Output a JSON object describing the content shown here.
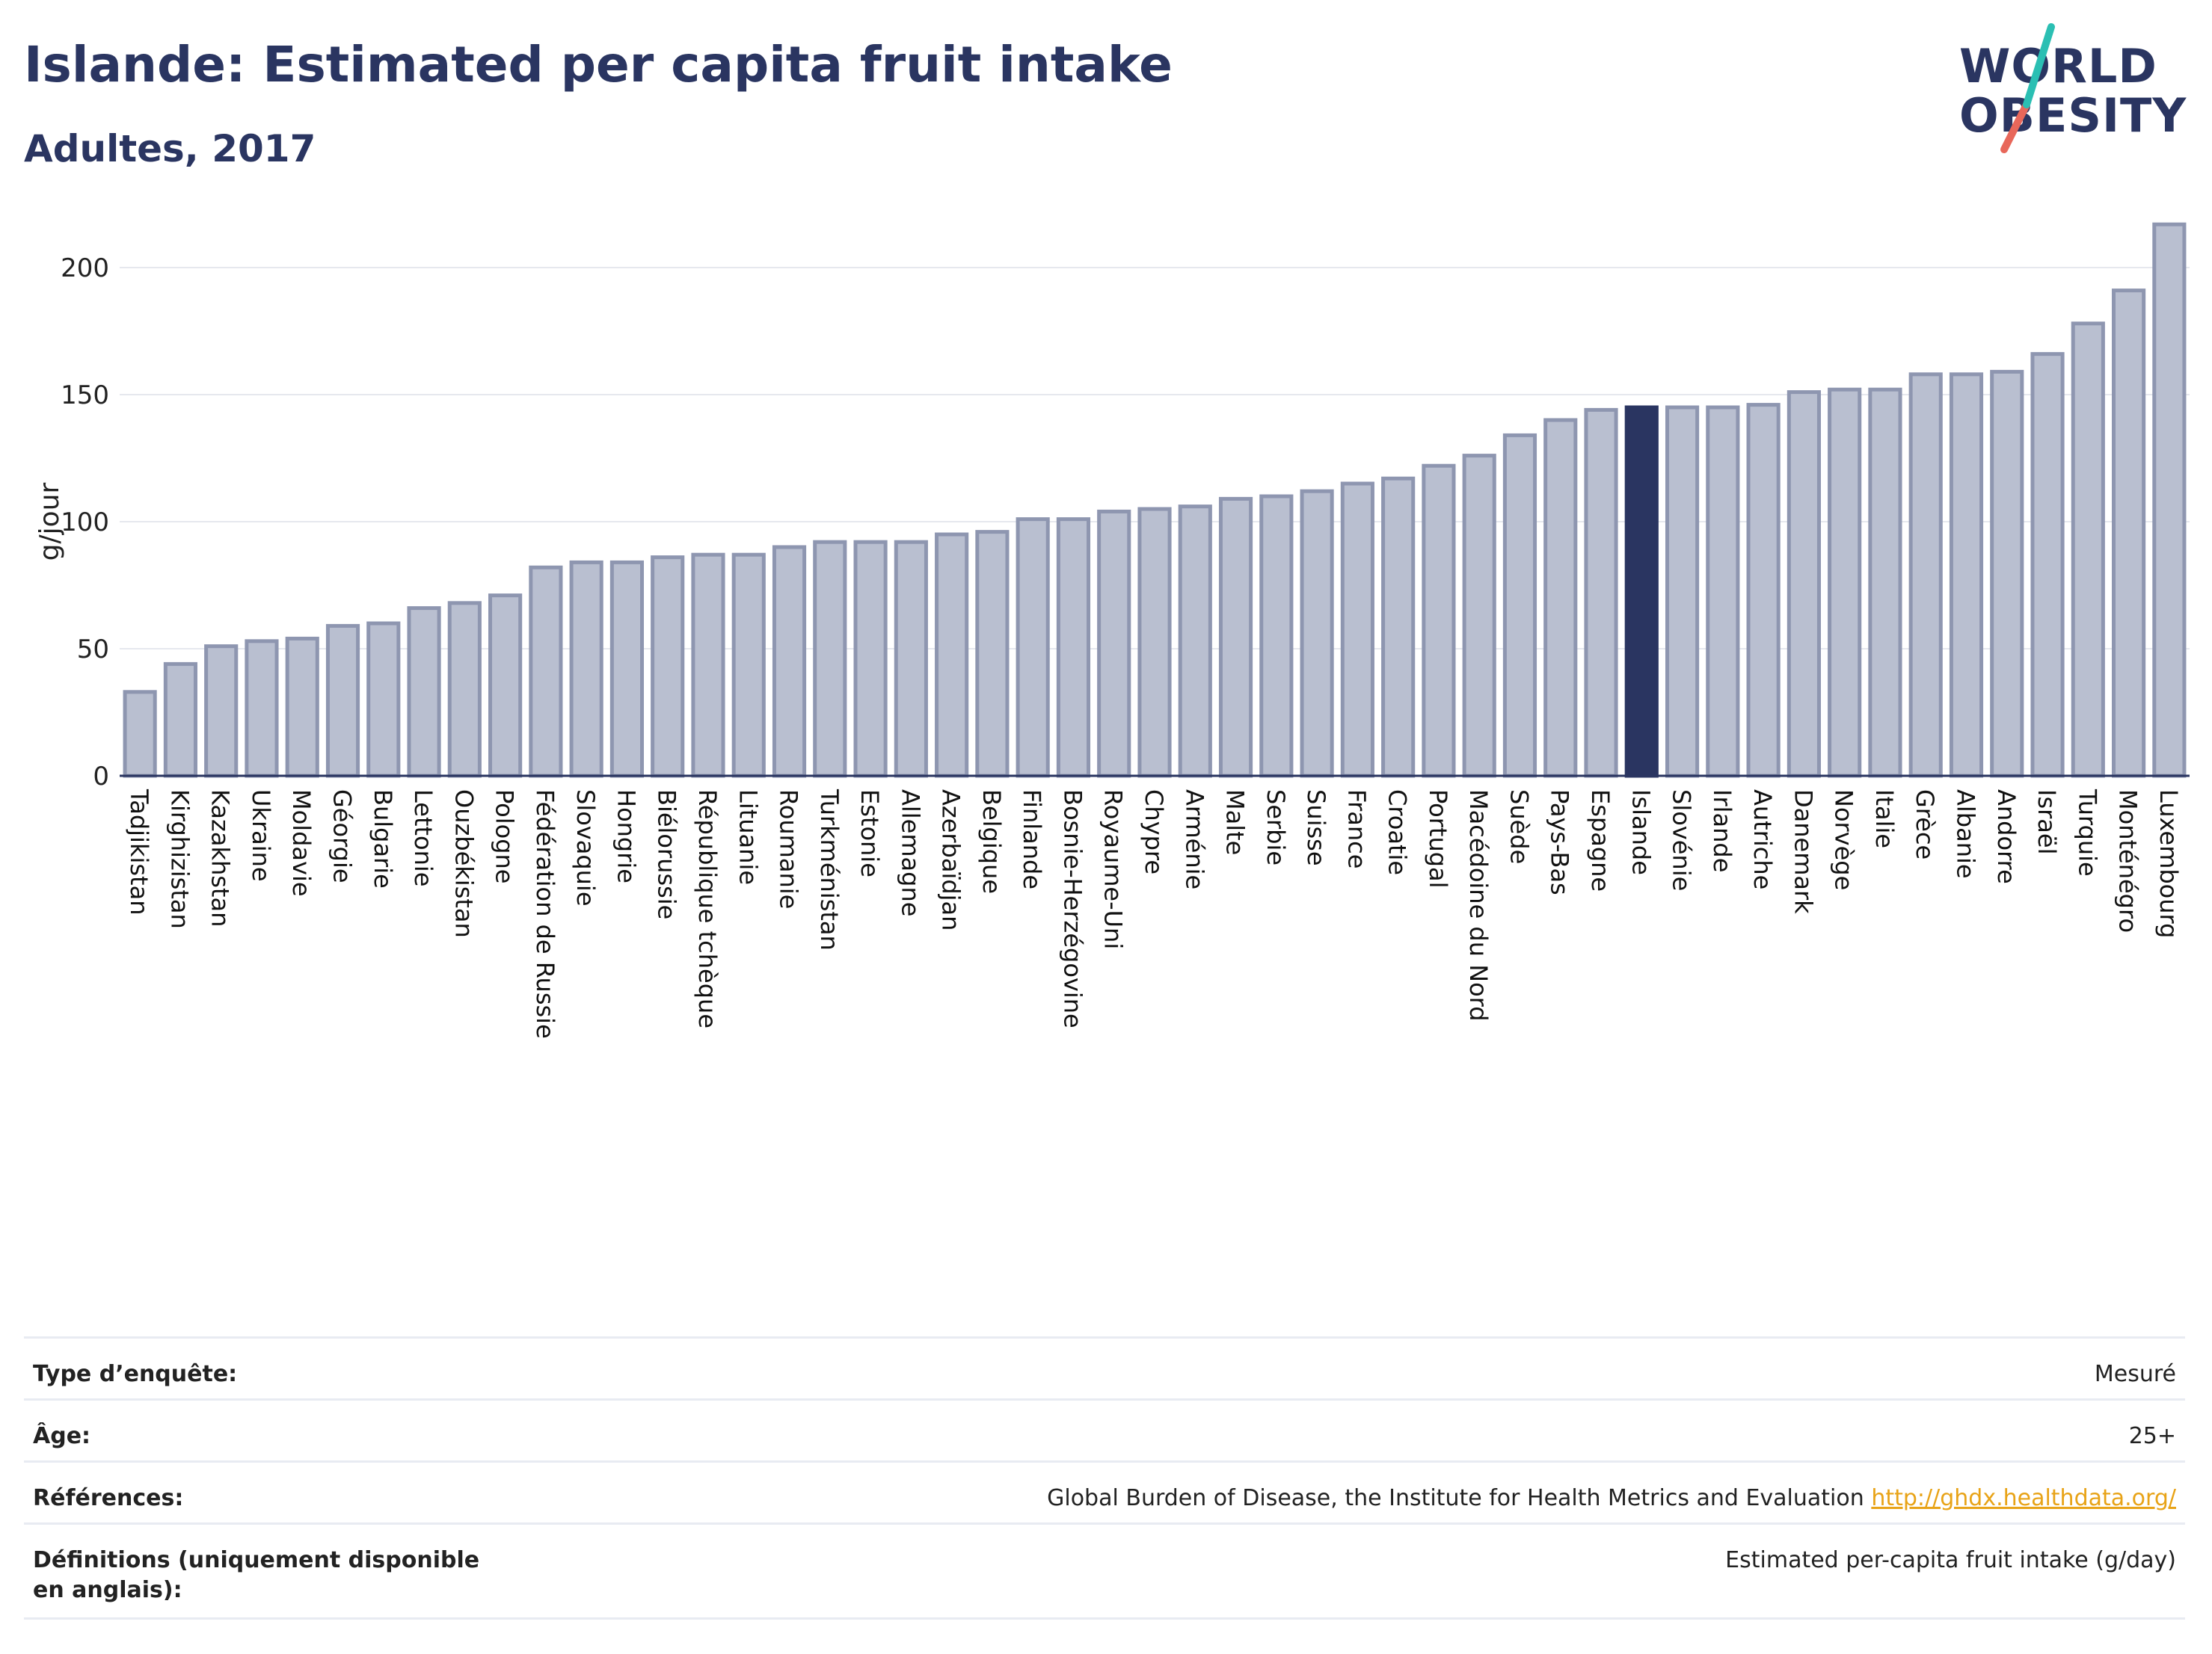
{
  "header": {
    "title": "Islande: Estimated per capita fruit intake",
    "subtitle": "Adultes, 2017"
  },
  "logo": {
    "line1": "WORLD",
    "line2": "OBESITY",
    "colors": {
      "text": "#2a3561",
      "slash_top": "#2bbfb3",
      "slash_bottom": "#e8675a"
    }
  },
  "colors": {
    "bar": "#b9bfd0",
    "bar_stroke": "#8e96b0",
    "highlight": "#2a3561",
    "grid": "#e6e8ee",
    "axis": "#2a3561"
  },
  "chart_data": {
    "type": "bar",
    "ylabel": "g/jour",
    "ylim": [
      0,
      220
    ],
    "yticks": [
      0,
      50,
      100,
      150,
      200
    ],
    "grid": true,
    "highlight": "Islande",
    "categories": [
      "Tadjikistan",
      "Kirghizistan",
      "Kazakhstan",
      "Ukraine",
      "Moldavie",
      "Géorgie",
      "Bulgarie",
      "Lettonie",
      "Ouzbékistan",
      "Pologne",
      "Fédération de Russie",
      "Slovaquie",
      "Hongrie",
      "Biélorussie",
      "République tchèque",
      "Lituanie",
      "Roumanie",
      "Turkménistan",
      "Estonie",
      "Allemagne",
      "Azerbaïdjan",
      "Belgique",
      "Finlande",
      "Bosnie-Herzégovine",
      "Royaume-Uni",
      "Chypre",
      "Arménie",
      "Malte",
      "Serbie",
      "Suisse",
      "France",
      "Croatie",
      "Portugal",
      "Macédoine du Nord",
      "Suède",
      "Pays-Bas",
      "Espagne",
      "Islande",
      "Slovénie",
      "Irlande",
      "Autriche",
      "Danemark",
      "Norvège",
      "Italie",
      "Grèce",
      "Albanie",
      "Andorre",
      "Israël",
      "Turquie",
      "Monténégro",
      "Luxembourg"
    ],
    "values": [
      33,
      44,
      51,
      53,
      54,
      59,
      60,
      66,
      68,
      71,
      82,
      84,
      84,
      86,
      87,
      87,
      90,
      92,
      92,
      92,
      95,
      96,
      101,
      101,
      104,
      105,
      106,
      109,
      110,
      112,
      115,
      117,
      122,
      126,
      134,
      140,
      144,
      145,
      145,
      145,
      146,
      151,
      152,
      152,
      158,
      158,
      159,
      166,
      178,
      191,
      217
    ]
  },
  "info": {
    "rows": [
      {
        "label": "Type d’enquête:",
        "value": "Mesuré"
      },
      {
        "label": "Âge:",
        "value": "25+"
      },
      {
        "label": "Références:",
        "value": "Global Burden of Disease, the Institute for Health Metrics and Evaluation",
        "link": "http://ghdx.healthdata.org/"
      },
      {
        "label": "Définitions (uniquement disponible en anglais):",
        "value": "Estimated per-capita fruit intake (g/day)"
      }
    ]
  }
}
